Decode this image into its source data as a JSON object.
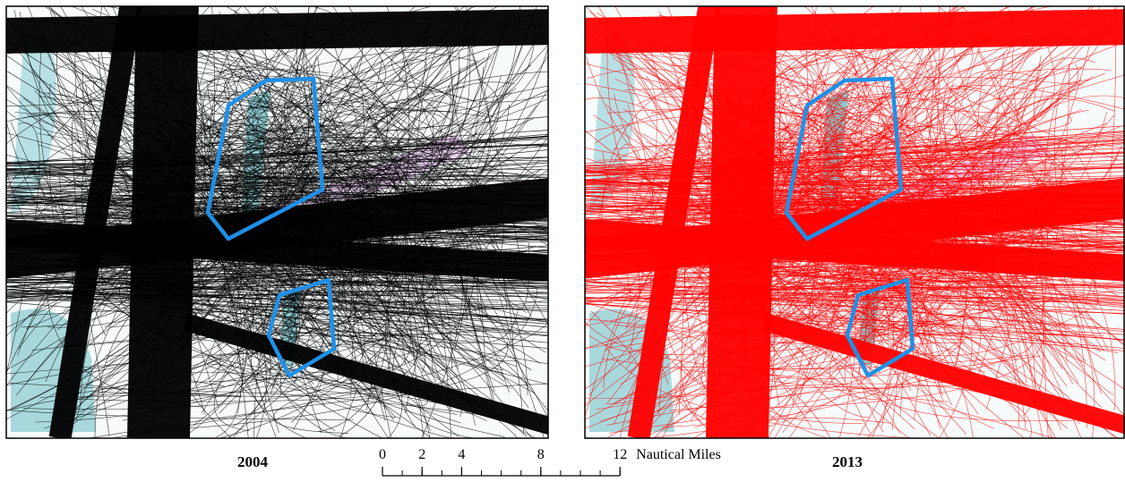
{
  "panels": [
    {
      "label": "2004"
    },
    {
      "label": "2013"
    }
  ],
  "scale_bar": {
    "ticks": [
      0,
      2,
      4,
      8,
      12
    ],
    "unit": "Nautical Miles"
  }
}
